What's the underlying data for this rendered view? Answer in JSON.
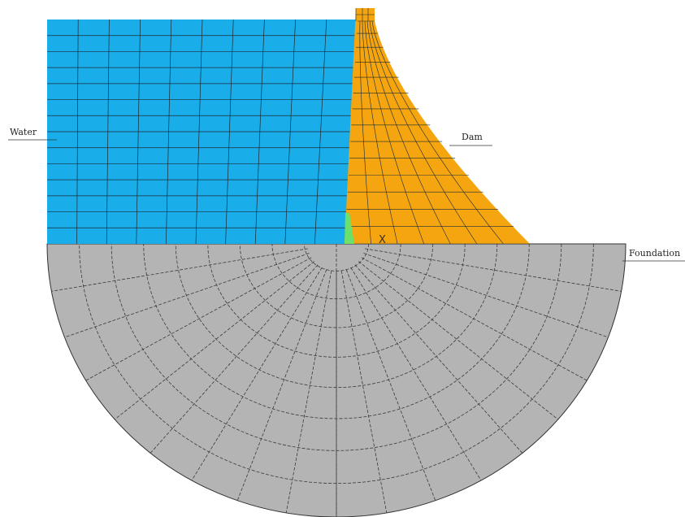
{
  "labels": {
    "water": "Water",
    "dam": "Dam",
    "foundation": "Foundation"
  },
  "point_marker": "X",
  "colors": {
    "water": "#19aeea",
    "dam": "#f5a50f",
    "foundation": "#b4b4b4",
    "interface": "#6be06b",
    "mesh_line": "#1c2a36",
    "foundation_line": "#3a3a3a",
    "background": "#ffffff"
  },
  "mesh": {
    "water_columns": 10,
    "water_rows": 14,
    "dam_columns": 7,
    "dam_rows": 14,
    "foundation_rings": 9,
    "foundation_sectors": 18
  }
}
